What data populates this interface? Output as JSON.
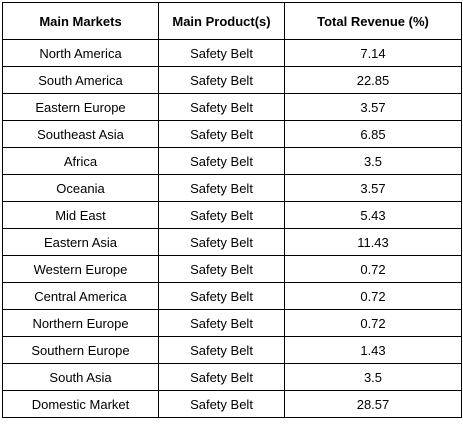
{
  "table": {
    "headers": [
      "Main Markets",
      "Main Product(s)",
      "Total Revenue (%)"
    ],
    "rows": [
      [
        "North America",
        "Safety Belt",
        "7.14"
      ],
      [
        "South America",
        "Safety Belt",
        "22.85"
      ],
      [
        "Eastern Europe",
        "Safety Belt",
        "3.57"
      ],
      [
        "Southeast Asia",
        "Safety Belt",
        "6.85"
      ],
      [
        "Africa",
        "Safety Belt",
        "3.5"
      ],
      [
        "Oceania",
        "Safety Belt",
        "3.57"
      ],
      [
        "Mid East",
        "Safety Belt",
        "5.43"
      ],
      [
        "Eastern Asia",
        "Safety Belt",
        "11.43"
      ],
      [
        "Western Europe",
        "Safety Belt",
        "0.72"
      ],
      [
        "Central America",
        "Safety Belt",
        "0.72"
      ],
      [
        "Northern Europe",
        "Safety Belt",
        "0.72"
      ],
      [
        "Southern Europe",
        "Safety Belt",
        "1.43"
      ],
      [
        "South Asia",
        "Safety Belt",
        "3.5"
      ],
      [
        "Domestic Market",
        "Safety Belt",
        "28.57"
      ]
    ]
  }
}
